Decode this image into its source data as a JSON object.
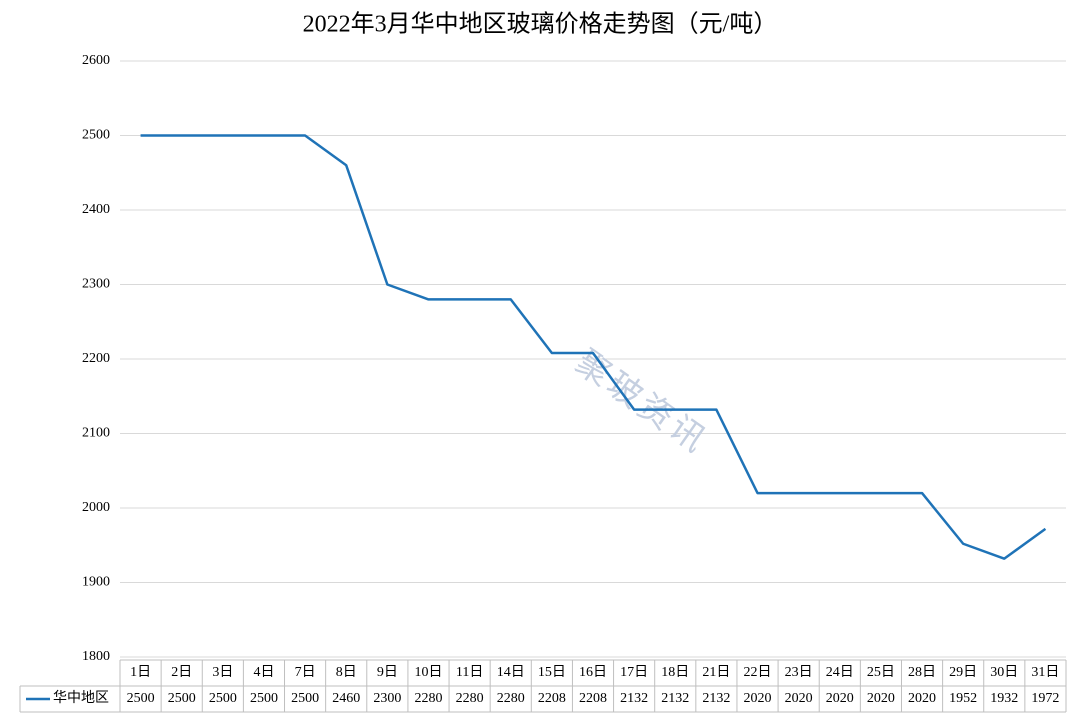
{
  "chart_data": {
    "type": "line",
    "title": "2022年3月华中地区玻璃价格走势图（元/吨）",
    "watermark": "聚玻资讯",
    "categories": [
      "1日",
      "2日",
      "3日",
      "4日",
      "7日",
      "8日",
      "9日",
      "10日",
      "11日",
      "14日",
      "15日",
      "16日",
      "17日",
      "18日",
      "21日",
      "22日",
      "23日",
      "24日",
      "25日",
      "28日",
      "29日",
      "30日",
      "31日"
    ],
    "series": [
      {
        "name": "华中地区",
        "color": "#1f73b7",
        "values": [
          2500,
          2500,
          2500,
          2500,
          2500,
          2460,
          2300,
          2280,
          2280,
          2280,
          2208,
          2208,
          2132,
          2132,
          2132,
          2020,
          2020,
          2020,
          2020,
          2020,
          1952,
          1932,
          1972
        ]
      }
    ],
    "ylim": [
      1800,
      2600
    ],
    "yticks": [
      1800,
      1900,
      2000,
      2100,
      2200,
      2300,
      2400,
      2500,
      2600
    ],
    "grid": true,
    "data_table": true
  }
}
